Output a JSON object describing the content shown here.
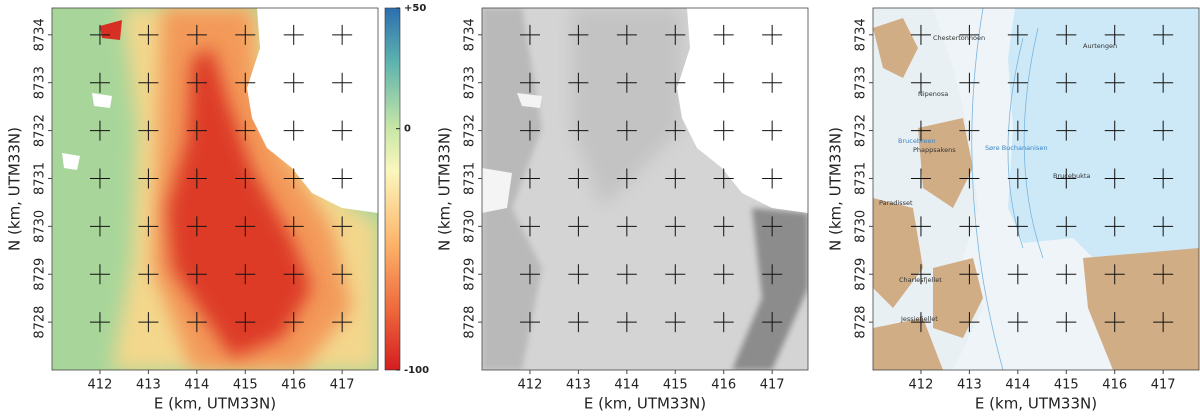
{
  "panels": [
    {
      "xlabel": "E (km, UTM33N)",
      "ylabel": "N (km, UTM33N)",
      "xlim": [
        411.01,
        417.74
      ],
      "ylim": [
        8727.0,
        8734.56
      ],
      "xticks": [
        412,
        413,
        414,
        415,
        416,
        417
      ],
      "yticks": [
        8728,
        8729,
        8730,
        8731,
        8732,
        8733,
        8734
      ]
    },
    {
      "xlabel": "E (km, UTM33N)",
      "ylabel": "N (km, UTM33N)",
      "xlim": [
        411.01,
        417.74
      ],
      "ylim": [
        8727.0,
        8734.56
      ],
      "xticks": [
        412,
        413,
        414,
        415,
        416,
        417
      ],
      "yticks": [
        8728,
        8729,
        8730,
        8731,
        8732,
        8733,
        8734
      ]
    },
    {
      "xlabel": "E (km, UTM33N)",
      "ylabel": "N (km, UTM33N)",
      "xlim": [
        411.01,
        417.74
      ],
      "ylim": [
        8727.0,
        8734.56
      ],
      "xticks": [
        412,
        413,
        414,
        415,
        416,
        417
      ],
      "yticks": [
        8728,
        8729,
        8730,
        8731,
        8732,
        8733,
        8734
      ]
    }
  ],
  "colorbar": {
    "lim": [
      -100,
      50
    ],
    "ticks": [
      {
        "value": 50,
        "label": "+50"
      },
      0,
      -100
    ]
  },
  "place_names": [
    "Chestertonnoen",
    "Aurtengen",
    "Nipenosa",
    "Brucebreen",
    "Søre Buchananisen",
    "Phappsakens",
    "Brucebukta",
    "Paradisset",
    "Charlesfjellet",
    "Jessiefjellet"
  ]
}
